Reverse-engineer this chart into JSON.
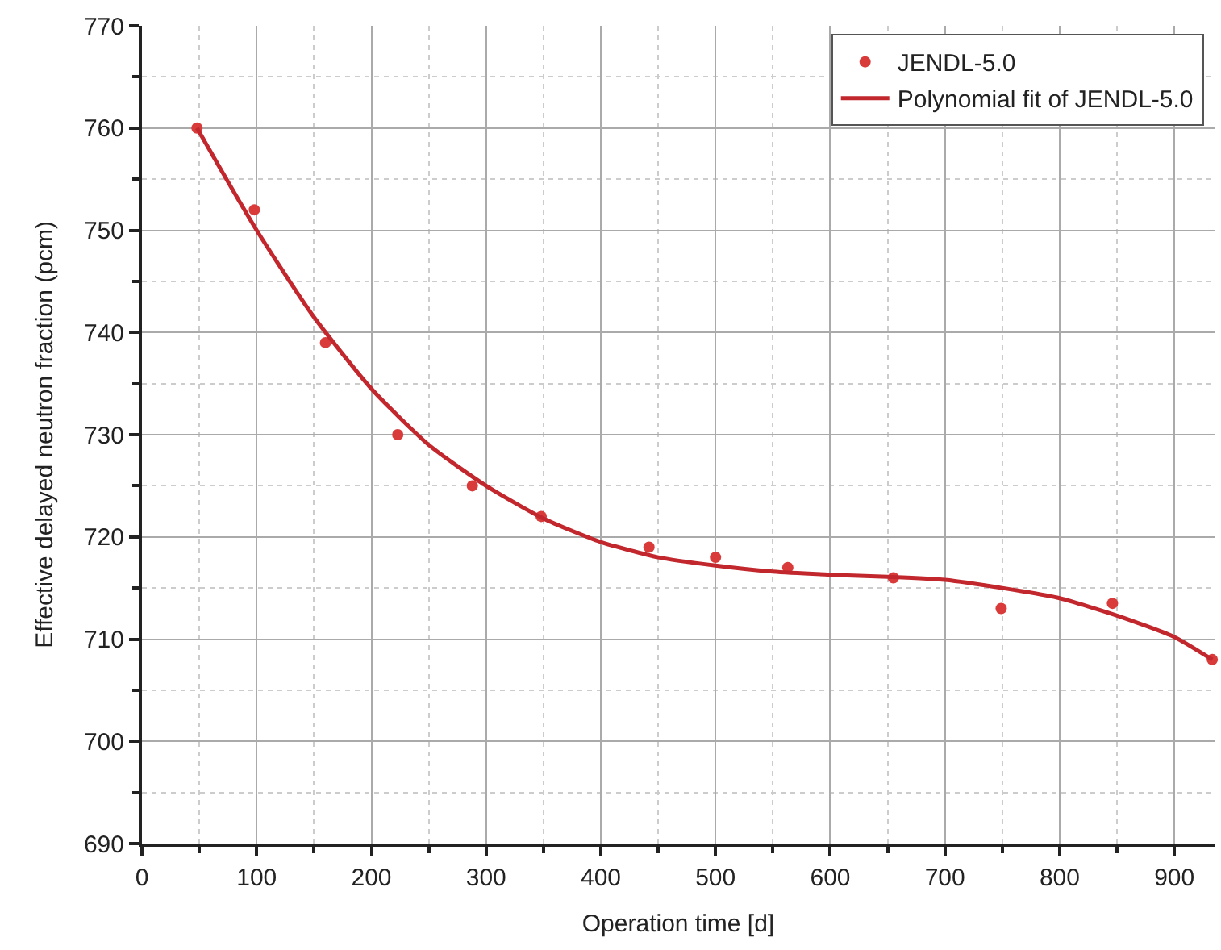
{
  "chart_data": {
    "type": "scatter",
    "xlabel": "Operation time [d]",
    "ylabel": "Effective delayed neutron fraction (pcm)",
    "xlim": [
      0,
      935
    ],
    "ylim": [
      690,
      770
    ],
    "xticks": [
      0,
      100,
      200,
      300,
      400,
      500,
      600,
      700,
      800,
      900
    ],
    "yticks": [
      690,
      700,
      710,
      720,
      730,
      740,
      750,
      760,
      770
    ],
    "grid": true,
    "legend": "top right",
    "series": [
      {
        "name": "JENDL-5.0",
        "marker": "circle",
        "color": "#d93a3a",
        "x": [
          48,
          98,
          160,
          223,
          288,
          348,
          442,
          500,
          563,
          655,
          749,
          846,
          933
        ],
        "values": [
          760,
          752,
          739,
          730,
          725,
          722,
          719,
          718,
          717,
          716,
          713,
          713.5,
          708
        ]
      },
      {
        "name": "Polynomial fit of JENDL-5.0",
        "type": "line",
        "line_style": "solid",
        "marker": "none",
        "color": "#c1272d",
        "x": [
          48,
          100,
          150,
          200,
          250,
          300,
          350,
          400,
          450,
          500,
          550,
          600,
          650,
          700,
          750,
          800,
          850,
          900,
          933
        ],
        "values": [
          760,
          750,
          741.5,
          734.5,
          729,
          725,
          721.8,
          719.5,
          718,
          717.2,
          716.6,
          716.3,
          716.1,
          715.8,
          715,
          714,
          712.3,
          710.2,
          708
        ]
      }
    ]
  }
}
